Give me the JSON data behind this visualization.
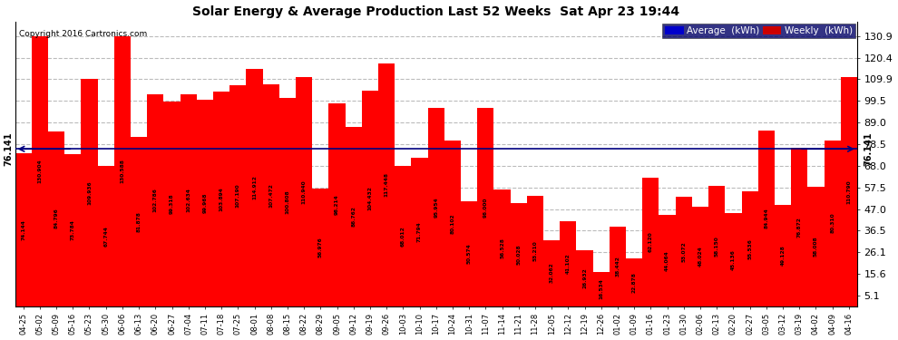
{
  "title": "Solar Energy & Average Production Last 52 Weeks  Sat Apr 23 19:44",
  "copyright": "Copyright 2016 Cartronics.com",
  "average_line": 76.141,
  "average_label": "76.141",
  "bar_color": "#ff0000",
  "average_line_color": "#000080",
  "background_color": "#ffffff",
  "plot_bg_color": "#ffffff",
  "grid_color": "#bbbbbb",
  "yticks": [
    5.1,
    15.6,
    26.1,
    36.5,
    47.0,
    57.5,
    68.0,
    78.5,
    89.0,
    99.5,
    109.9,
    120.4,
    130.9
  ],
  "legend_avg_color": "#0000cc",
  "legend_weekly_color": "#cc0000",
  "categories": [
    "04-25",
    "05-02",
    "05-09",
    "05-16",
    "05-23",
    "05-30",
    "06-06",
    "06-13",
    "06-20",
    "06-27",
    "07-04",
    "07-11",
    "07-18",
    "07-25",
    "08-01",
    "08-08",
    "08-15",
    "08-22",
    "08-29",
    "09-05",
    "09-12",
    "09-19",
    "09-26",
    "10-03",
    "10-10",
    "10-17",
    "10-24",
    "10-31",
    "11-07",
    "11-14",
    "11-21",
    "11-28",
    "12-05",
    "12-12",
    "12-19",
    "12-26",
    "01-02",
    "01-09",
    "01-16",
    "01-23",
    "01-30",
    "02-06",
    "02-13",
    "02-20",
    "02-27",
    "03-05",
    "03-12",
    "03-19",
    "04-02",
    "04-09",
    "04-16"
  ],
  "values": [
    74.144,
    130.904,
    84.796,
    73.784,
    109.936,
    67.744,
    130.588,
    81.878,
    102.786,
    99.318,
    102.634,
    99.968,
    103.894,
    107.19,
    114.912,
    107.472,
    100.808,
    110.94,
    56.976,
    98.214,
    86.762,
    104.432,
    117.448,
    68.012,
    71.794,
    95.954,
    80.102,
    50.574,
    96.0,
    56.528,
    50.028,
    53.21,
    32.062,
    41.102,
    26.932,
    16.534,
    38.442,
    22.878,
    62.12,
    44.064,
    53.072,
    48.024,
    58.15,
    45.136,
    55.536,
    84.944,
    49.128,
    76.872,
    58.008,
    80.31,
    110.79
  ]
}
